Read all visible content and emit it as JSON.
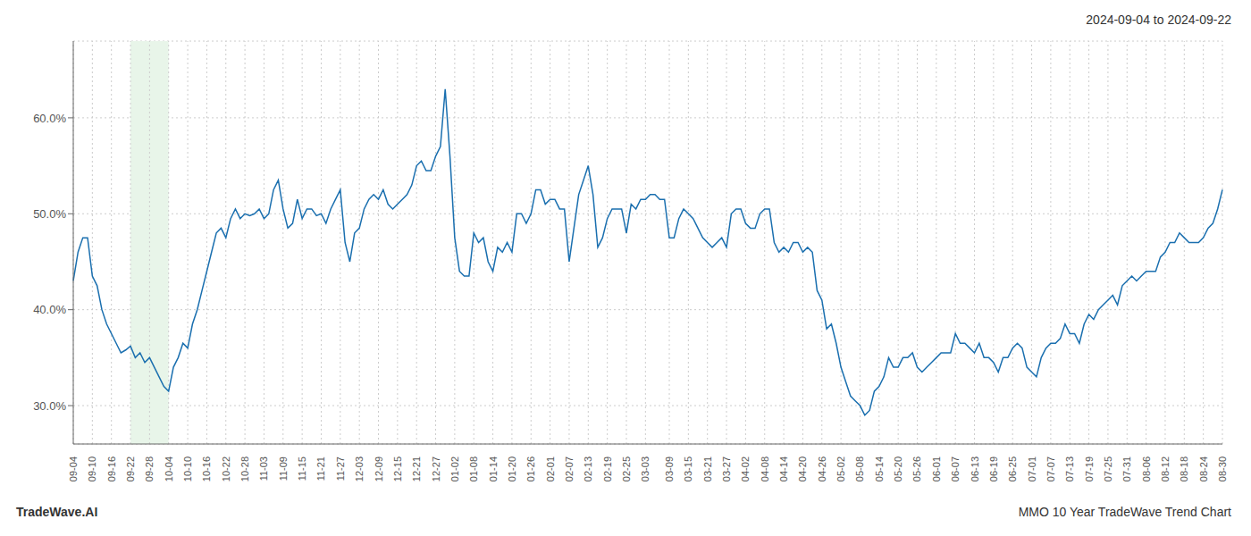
{
  "chart_data": {
    "type": "line",
    "title": "2024-09-04 to 2024-09-22",
    "annotations": [
      "TradeWave.AI",
      "MMO 10 Year TradeWave Trend Chart"
    ],
    "color": "#1a6faf",
    "grid": true,
    "ylim": [
      26.0,
      68.0
    ],
    "yticks": [
      {
        "value": 30.0,
        "label": "30.0%"
      },
      {
        "value": 40.0,
        "label": "40.0%"
      },
      {
        "value": 50.0,
        "label": "50.0%"
      },
      {
        "value": 60.0,
        "label": "60.0%"
      }
    ],
    "highlight": {
      "start": "09-22",
      "end": "10-04",
      "color": "#e8f5e9"
    },
    "categories": [
      "09-04",
      null,
      null,
      null,
      "09-10",
      null,
      null,
      null,
      "09-16",
      null,
      null,
      null,
      "09-22",
      null,
      null,
      null,
      "09-28",
      null,
      null,
      null,
      "10-04",
      null,
      null,
      null,
      "10-10",
      null,
      null,
      null,
      "10-16",
      null,
      null,
      null,
      "10-22",
      null,
      null,
      null,
      "10-28",
      null,
      null,
      null,
      "11-03",
      null,
      null,
      null,
      "11-09",
      null,
      null,
      null,
      "11-15",
      null,
      null,
      null,
      "11-21",
      null,
      null,
      null,
      "11-27",
      null,
      null,
      null,
      "12-03",
      null,
      null,
      null,
      "12-09",
      null,
      null,
      null,
      "12-15",
      null,
      null,
      null,
      "12-21",
      null,
      null,
      null,
      "12-27",
      null,
      null,
      null,
      "01-02",
      null,
      null,
      null,
      "01-08",
      null,
      null,
      null,
      "01-14",
      null,
      null,
      null,
      "01-20",
      null,
      null,
      null,
      "01-26",
      null,
      null,
      null,
      "02-01",
      null,
      null,
      null,
      "02-07",
      null,
      null,
      null,
      "02-13",
      null,
      null,
      null,
      "02-19",
      null,
      null,
      null,
      "02-25",
      null,
      null,
      null,
      "03-03",
      null,
      null,
      null,
      null,
      "03-09",
      null,
      null,
      null,
      "03-15",
      null,
      null,
      null,
      "03-21",
      null,
      null,
      null,
      "03-27",
      null,
      null,
      null,
      "04-02",
      null,
      null,
      null,
      "04-08",
      null,
      null,
      null,
      "04-14",
      null,
      null,
      null,
      "04-20",
      null,
      null,
      null,
      "04-26",
      null,
      null,
      null,
      "05-02",
      null,
      null,
      null,
      "05-08",
      null,
      null,
      null,
      "05-14",
      null,
      null,
      null,
      "05-20",
      null,
      null,
      null,
      "05-26",
      null,
      null,
      null,
      "06-01",
      null,
      null,
      null,
      "06-07",
      null,
      null,
      null,
      "06-13",
      null,
      null,
      null,
      "06-19",
      null,
      null,
      null,
      "06-25",
      null,
      null,
      null,
      "07-01",
      null,
      null,
      null,
      "07-07",
      null,
      null,
      null,
      "07-13",
      null,
      null,
      null,
      "07-19",
      null,
      null,
      null,
      "07-25",
      null,
      null,
      null,
      "07-31",
      null,
      null,
      null,
      "08-06",
      null,
      null,
      null,
      "08-12",
      null,
      null,
      null,
      "08-18",
      null,
      null,
      null,
      "08-24",
      null,
      null,
      null,
      "08-30"
    ],
    "values": [
      43.0,
      46.0,
      47.5,
      47.5,
      43.5,
      42.5,
      40.0,
      38.5,
      37.5,
      36.5,
      35.5,
      35.8,
      36.2,
      35.0,
      35.5,
      34.5,
      35.0,
      34.0,
      33.0,
      32.0,
      31.5,
      34.0,
      35.0,
      36.5,
      36.0,
      38.5,
      40.0,
      42.0,
      44.0,
      46.0,
      48.0,
      48.5,
      47.5,
      49.5,
      50.5,
      49.5,
      50.0,
      49.8,
      50.0,
      50.5,
      49.5,
      50.0,
      52.5,
      53.5,
      50.5,
      48.5,
      49.0,
      51.5,
      49.5,
      50.5,
      50.5,
      49.8,
      50.0,
      49.0,
      50.5,
      51.5,
      52.5,
      47.0,
      45.0,
      48.0,
      48.5,
      50.5,
      51.5,
      52.0,
      51.5,
      52.5,
      51.0,
      50.5,
      51.0,
      51.5,
      52.0,
      53.0,
      55.0,
      55.5,
      54.5,
      54.5,
      56.0,
      57.0,
      63.0,
      56.0,
      47.5,
      44.0,
      43.5,
      43.5,
      48.0,
      47.0,
      47.5,
      45.0,
      44.0,
      46.5,
      46.0,
      47.0,
      46.0,
      50.0,
      50.0,
      49.0,
      50.0,
      52.5,
      52.5,
      51.0,
      51.5,
      51.5,
      50.5,
      50.5,
      45.0,
      48.5,
      52.0,
      53.5,
      55.0,
      52.0,
      46.5,
      47.5,
      49.5,
      50.5,
      50.5,
      50.5,
      48.0,
      51.0,
      50.5,
      51.5,
      51.5,
      52.0,
      52.0,
      51.5,
      51.5,
      47.5,
      47.5,
      49.5,
      50.5,
      50.0,
      49.5,
      48.5,
      47.5,
      47.0,
      46.5,
      47.0,
      47.5,
      46.5,
      50.0,
      50.5,
      50.5,
      49.0,
      48.5,
      48.5,
      50.0,
      50.5,
      50.5,
      47.0,
      46.0,
      46.5,
      46.0,
      47.0,
      47.0,
      46.0,
      46.5,
      46.0,
      42.0,
      41.0,
      38.0,
      38.5,
      36.5,
      34.0,
      32.5,
      31.0,
      30.5,
      30.0,
      29.0,
      29.5,
      31.5,
      32.0,
      33.0,
      35.0,
      34.0,
      34.0,
      35.0,
      35.0,
      35.5,
      34.0,
      33.5,
      34.0,
      34.5,
      35.0,
      35.5,
      35.5,
      35.5,
      37.5,
      36.5,
      36.5,
      36.0,
      35.5,
      36.5,
      35.0,
      35.0,
      34.5,
      33.5,
      35.0,
      35.0,
      36.0,
      36.5,
      36.0,
      34.0,
      33.5,
      33.0,
      35.0,
      36.0,
      36.5,
      36.5,
      37.0,
      38.5,
      37.5,
      37.5,
      36.5,
      38.5,
      39.5,
      39.0,
      40.0,
      40.5,
      41.0,
      41.5,
      40.5,
      42.5,
      43.0,
      43.5,
      43.0,
      43.5,
      44.0,
      44.0,
      44.0,
      45.5,
      46.0,
      47.0,
      47.0,
      48.0,
      47.5,
      47.0,
      47.0,
      47.0,
      47.5,
      48.5,
      49.0,
      50.5,
      52.5
    ]
  }
}
